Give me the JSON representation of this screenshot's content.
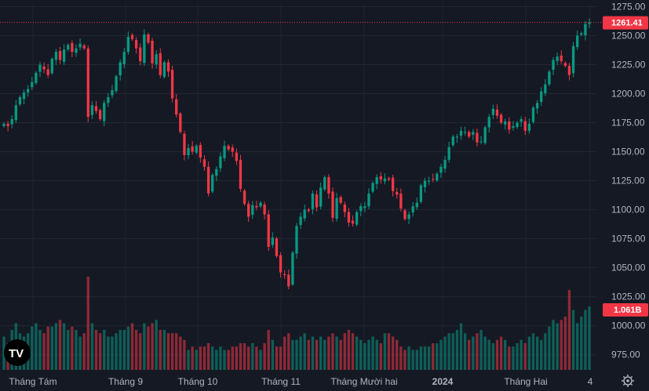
{
  "chart_data": {
    "type": "candlestick",
    "y_axis_ticks": [
      "1275.00",
      "1250.00",
      "1225.00",
      "1200.00",
      "1175.00",
      "1150.00",
      "1125.00",
      "1100.00",
      "1075.00",
      "1050.00",
      "1025.00",
      "1000.00",
      "975.00"
    ],
    "ylim": [
      962,
      1278
    ],
    "x_axis_labels": [
      "Tháng Tám",
      "Tháng 9",
      "Tháng 10",
      "Tháng 11",
      "Tháng Mười hai",
      "2024",
      "Tháng Hai",
      "4"
    ],
    "last_price_label": "1261.41",
    "last_price": 1261.41,
    "volume_label": "1.061B",
    "closes": [
      1174,
      1172,
      1178,
      1190,
      1197,
      1201,
      1204,
      1210,
      1218,
      1225,
      1221,
      1216,
      1230,
      1236,
      1229,
      1238,
      1242,
      1236,
      1239,
      1243,
      1239,
      1180,
      1190,
      1185,
      1178,
      1192,
      1197,
      1203,
      1215,
      1227,
      1236,
      1249,
      1247,
      1239,
      1228,
      1251,
      1244,
      1226,
      1234,
      1216,
      1227,
      1219,
      1196,
      1182,
      1167,
      1147,
      1153,
      1150,
      1155,
      1145,
      1137,
      1114,
      1130,
      1135,
      1146,
      1155,
      1152,
      1150,
      1142,
      1118,
      1105,
      1094,
      1104,
      1102,
      1106,
      1096,
      1068,
      1076,
      1060,
      1046,
      1044,
      1034,
      1063,
      1086,
      1094,
      1100,
      1099,
      1114,
      1102,
      1119,
      1128,
      1114,
      1093,
      1110,
      1106,
      1098,
      1089,
      1088,
      1098,
      1103,
      1103,
      1114,
      1123,
      1128,
      1126,
      1127,
      1126,
      1116,
      1113,
      1101,
      1092,
      1096,
      1103,
      1106,
      1121,
      1125,
      1125,
      1126,
      1131,
      1137,
      1143,
      1154,
      1163,
      1163,
      1168,
      1167,
      1163,
      1167,
      1158,
      1159,
      1171,
      1180,
      1187,
      1181,
      1175,
      1176,
      1169,
      1172,
      1175,
      1178,
      1168,
      1174,
      1188,
      1192,
      1202,
      1208,
      1219,
      1229,
      1232,
      1228,
      1224,
      1216,
      1241,
      1250,
      1252,
      1260,
      1261.41
    ],
    "volumes": [
      0.5,
      0.4,
      0.6,
      0.7,
      0.55,
      0.5,
      0.55,
      0.65,
      0.7,
      0.6,
      0.55,
      0.65,
      0.65,
      0.7,
      0.75,
      0.7,
      0.6,
      0.65,
      0.6,
      0.5,
      0.55,
      1.4,
      0.7,
      0.6,
      0.55,
      0.6,
      0.5,
      0.5,
      0.55,
      0.6,
      0.6,
      0.65,
      0.7,
      0.6,
      0.55,
      0.7,
      0.65,
      0.7,
      0.75,
      0.6,
      0.6,
      0.55,
      0.55,
      0.55,
      0.5,
      0.45,
      0.3,
      0.35,
      0.3,
      0.35,
      0.35,
      0.4,
      0.35,
      0.3,
      0.35,
      0.3,
      0.3,
      0.35,
      0.35,
      0.4,
      0.4,
      0.35,
      0.4,
      0.35,
      0.3,
      0.4,
      0.6,
      0.45,
      0.35,
      0.35,
      0.5,
      0.55,
      0.45,
      0.45,
      0.5,
      0.55,
      0.45,
      0.5,
      0.45,
      0.5,
      0.45,
      0.5,
      0.55,
      0.5,
      0.45,
      0.55,
      0.6,
      0.55,
      0.5,
      0.45,
      0.4,
      0.45,
      0.5,
      0.45,
      0.4,
      0.55,
      0.55,
      0.5,
      0.45,
      0.35,
      0.3,
      0.35,
      0.3,
      0.3,
      0.35,
      0.35,
      0.35,
      0.4,
      0.4,
      0.45,
      0.5,
      0.55,
      0.55,
      0.6,
      0.7,
      0.55,
      0.45,
      0.5,
      0.55,
      0.6,
      0.5,
      0.45,
      0.4,
      0.45,
      0.5,
      0.45,
      0.35,
      0.35,
      0.4,
      0.45,
      0.4,
      0.5,
      0.55,
      0.5,
      0.45,
      0.55,
      0.65,
      0.75,
      0.7,
      0.75,
      0.8,
      1.2,
      0.9,
      0.7,
      0.8,
      0.9,
      0.95
    ]
  }
}
